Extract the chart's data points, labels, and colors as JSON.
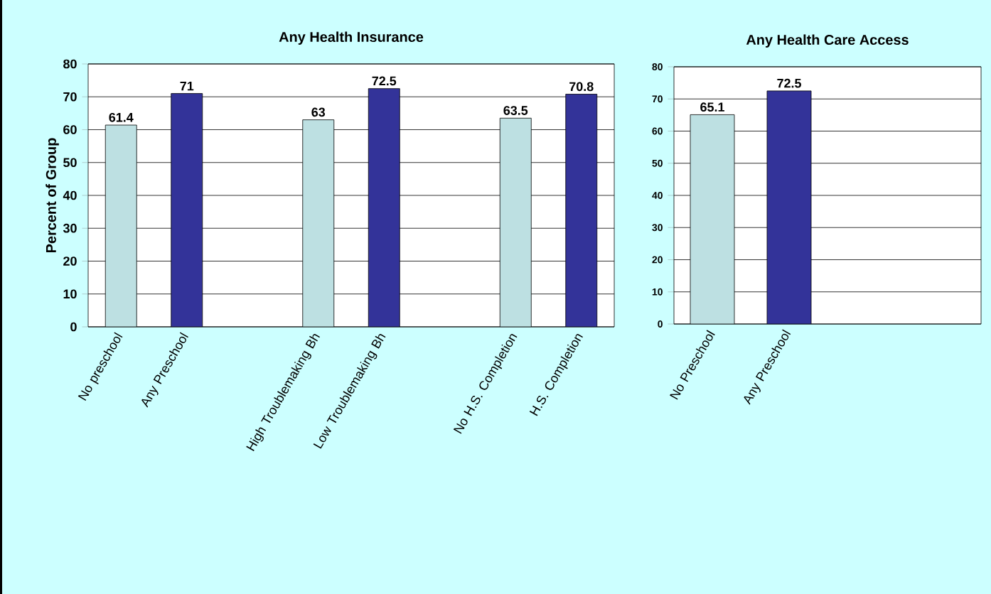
{
  "chart_data": [
    {
      "type": "bar",
      "title": "Any Health Insurance",
      "ylabel": "Percent of Group",
      "categories": [
        "No preschool",
        "Any Preschool",
        null,
        "High Troublemaking Bh",
        "Low Troublemaking Bh",
        null,
        "No H.S. Completion",
        "H.S. Completion"
      ],
      "values": [
        61.4,
        71,
        null,
        63,
        72.5,
        null,
        63.5,
        70.8
      ],
      "colors": [
        "#bde0e2",
        "#333399",
        "#bde0e2",
        "#bde0e2",
        "#333399",
        "#bde0e2",
        "#bde0e2",
        "#333399"
      ],
      "ylim": [
        0,
        80
      ],
      "yticks": [
        0,
        10,
        20,
        30,
        40,
        50,
        60,
        70,
        80
      ],
      "grid": "y",
      "data_labels": true
    },
    {
      "type": "bar",
      "title": "Any Health Care Access",
      "categories": [
        "No Preschool",
        "Any Preschool",
        null,
        null
      ],
      "values": [
        65.1,
        72.5,
        null,
        null
      ],
      "colors": [
        "#bde0e2",
        "#333399",
        "#bde0e2",
        "#333399"
      ],
      "ylim": [
        0,
        80
      ],
      "yticks": [
        0,
        10,
        20,
        30,
        40,
        50,
        60,
        70,
        80
      ],
      "grid": "y",
      "data_labels": true
    }
  ]
}
